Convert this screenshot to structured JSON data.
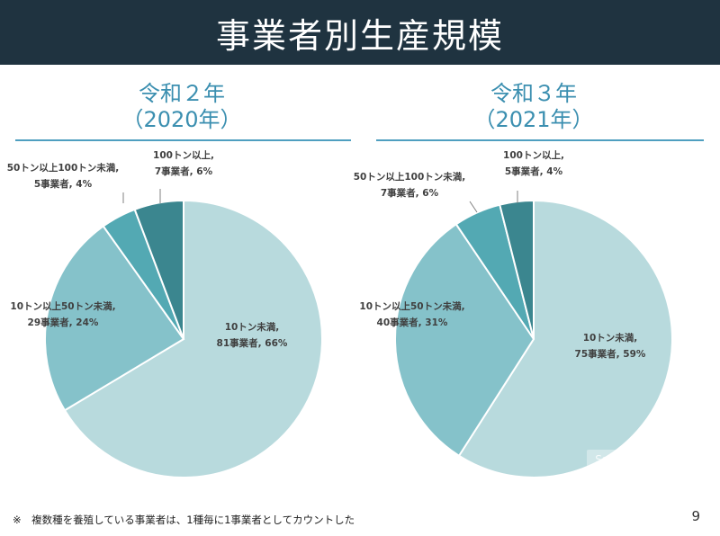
{
  "header": {
    "title": "事業者別生産規模"
  },
  "chart_data": [
    {
      "type": "pie",
      "title_line1": "令和２年",
      "title_line2": "（2020年）",
      "slices": [
        {
          "name": "10トン未満",
          "count_label": "81事業者",
          "value": 81,
          "percent": "66%",
          "color": "#b8dadd"
        },
        {
          "name": "10トン以上50トン未満",
          "count_label": "29事業者",
          "value": 29,
          "percent": "24%",
          "color": "#85c2ca"
        },
        {
          "name": "50トン以上100トン未満",
          "count_label": "5事業者",
          "value": 5,
          "percent": "4%",
          "color": "#53a9b3"
        },
        {
          "name": "100トン以上",
          "count_label": "7事業者",
          "value": 7,
          "percent": "6%",
          "color": "#3b868f"
        }
      ]
    },
    {
      "type": "pie",
      "title_line1": "令和３年",
      "title_line2": "（2021年）",
      "slices": [
        {
          "name": "10トン未満",
          "count_label": "75事業者",
          "value": 75,
          "percent": "59%",
          "color": "#b8dadd"
        },
        {
          "name": "10トン以上50トン未満",
          "count_label": "40事業者",
          "value": 40,
          "percent": "31%",
          "color": "#85c2ca"
        },
        {
          "name": "50トン以上100トン未満",
          "count_label": "7事業者",
          "value": 7,
          "percent": "6%",
          "color": "#53a9b3"
        },
        {
          "name": "100トン以上",
          "count_label": "5事業者",
          "value": 5,
          "percent": "4%",
          "color": "#3b868f"
        }
      ]
    }
  ],
  "footnote": "※　複数種を養殖している事業者は、1種毎に1事業者としてカウントした",
  "page_number": "9",
  "watermark": "Save"
}
